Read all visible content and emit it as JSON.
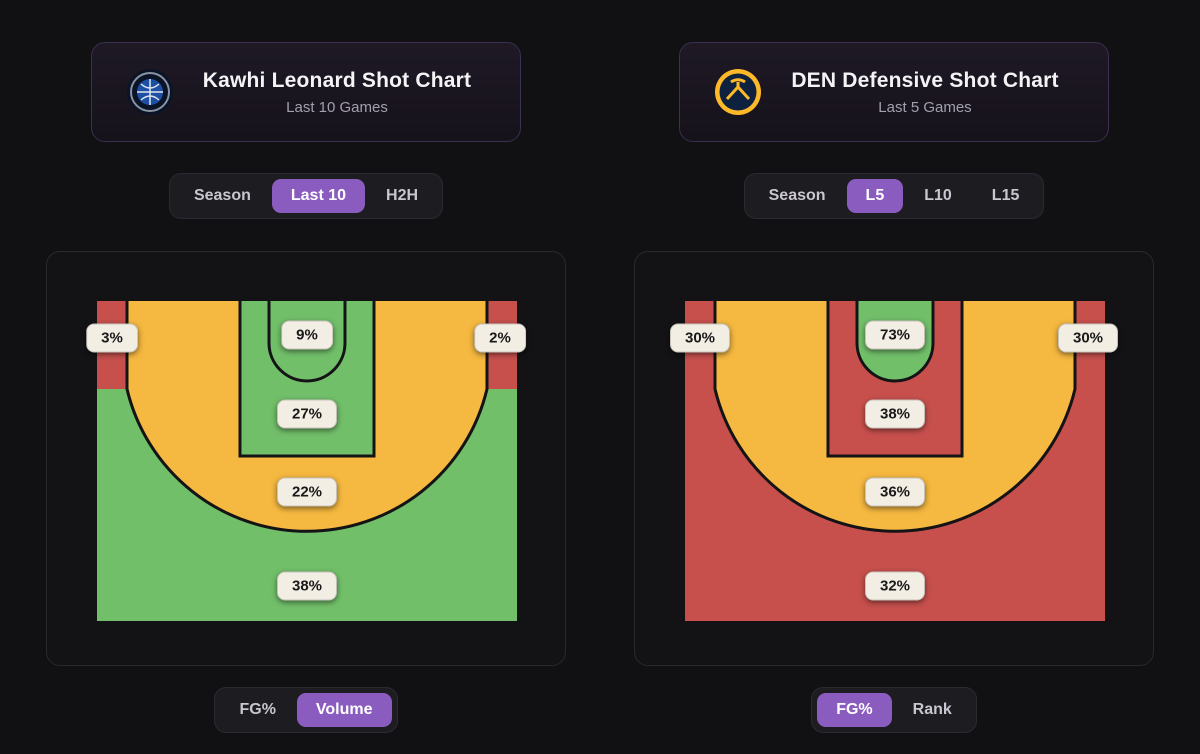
{
  "accent": {
    "purple": "#8b5cc0",
    "label_pill_bg": "#f3eee4",
    "green": "#72bf6a",
    "orange": "#f5b840",
    "red": "#c7504d"
  },
  "panels": [
    {
      "header": {
        "title": "Kawhi Leonard Shot Chart",
        "subtitle": "Last 10 Games",
        "logo": "la-clippers-logo"
      },
      "range_tabs": [
        {
          "label": "Season",
          "selected": false
        },
        {
          "label": "Last 10",
          "selected": true
        },
        {
          "label": "H2H",
          "selected": false
        }
      ],
      "mode_tabs": [
        {
          "label": "FG%",
          "selected": false
        },
        {
          "label": "Volume",
          "selected": true
        }
      ]
    },
    {
      "header": {
        "title": "DEN Defensive Shot Chart",
        "subtitle": "Last 5 Games",
        "logo": "denver-nuggets-logo"
      },
      "range_tabs": [
        {
          "label": "Season",
          "selected": false
        },
        {
          "label": "L5",
          "selected": true
        },
        {
          "label": "L10",
          "selected": false
        },
        {
          "label": "L15",
          "selected": false
        }
      ],
      "mode_tabs": [
        {
          "label": "FG%",
          "selected": true
        },
        {
          "label": "Rank",
          "selected": false
        }
      ]
    }
  ],
  "chart_data": [
    {
      "type": "heatmap",
      "chart_kind": "basketball-zone-shot-chart",
      "title": "Kawhi Leonard Shot Chart",
      "subtitle": "Last 10 Games",
      "selected_range": "Last 10",
      "selected_metric": "Volume",
      "zones": [
        {
          "id": "corner_left",
          "zone": "left-corner-3",
          "value": "3%",
          "color": "#c7504d"
        },
        {
          "id": "restricted",
          "zone": "restricted-area",
          "value": "9%",
          "color": "#72bf6a"
        },
        {
          "id": "corner_right",
          "zone": "right-corner-3",
          "value": "2%",
          "color": "#c7504d"
        },
        {
          "id": "paint",
          "zone": "paint",
          "value": "27%",
          "color": "#72bf6a"
        },
        {
          "id": "midrange",
          "zone": "mid-range",
          "value": "22%",
          "color": "#f5b840"
        },
        {
          "id": "above_break",
          "zone": "above-the-break-3",
          "value": "38%",
          "color": "#72bf6a"
        }
      ]
    },
    {
      "type": "heatmap",
      "chart_kind": "basketball-zone-shot-chart",
      "title": "DEN Defensive Shot Chart",
      "subtitle": "Last 5 Games",
      "selected_range": "L5",
      "selected_metric": "FG%",
      "zones": [
        {
          "id": "corner_left",
          "zone": "left-corner-3",
          "value": "30%",
          "color": "#c7504d"
        },
        {
          "id": "restricted",
          "zone": "restricted-area",
          "value": "73%",
          "color": "#72bf6a"
        },
        {
          "id": "corner_right",
          "zone": "right-corner-3",
          "value": "30%",
          "color": "#c7504d"
        },
        {
          "id": "paint",
          "zone": "paint",
          "value": "38%",
          "color": "#c7504d"
        },
        {
          "id": "midrange",
          "zone": "mid-range",
          "value": "36%",
          "color": "#f5b840"
        },
        {
          "id": "above_break",
          "zone": "above-the-break-3",
          "value": "32%",
          "color": "#c7504d"
        }
      ]
    }
  ]
}
